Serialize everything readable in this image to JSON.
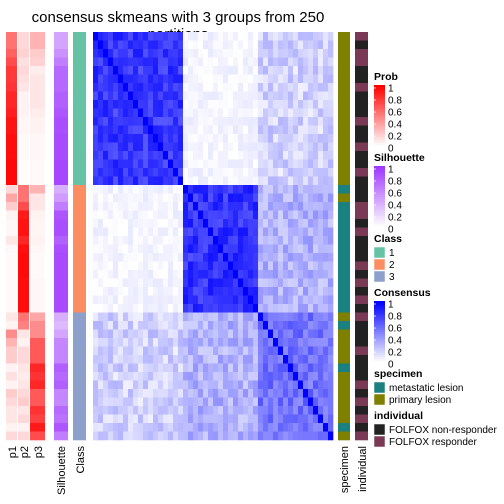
{
  "title": "consensus skmeans with 3 groups from 250 partitions",
  "chart_data": {
    "type": "heatmap",
    "title": "consensus skmeans with 3 groups from 250 partitions",
    "n_samples": 48,
    "annotation_columns": [
      "p1",
      "p2",
      "p3",
      "Silhouette",
      "Class"
    ],
    "side_annotation_columns": [
      "specimen",
      "individual"
    ],
    "class_sizes": [
      18,
      15,
      15
    ],
    "rows": [
      {
        "class": 1,
        "p1": 0.55,
        "p2": 0.15,
        "p3": 0.3,
        "silhouette": 0.45,
        "specimen": "primary lesion",
        "individual": "FOLFOX responder"
      },
      {
        "class": 1,
        "p1": 0.55,
        "p2": 0.15,
        "p3": 0.3,
        "silhouette": 0.45,
        "specimen": "primary lesion",
        "individual": "FOLFOX non-responder"
      },
      {
        "class": 1,
        "p1": 0.62,
        "p2": 0.18,
        "p3": 0.2,
        "silhouette": 0.55,
        "specimen": "primary lesion",
        "individual": "FOLFOX responder"
      },
      {
        "class": 1,
        "p1": 0.7,
        "p2": 0.12,
        "p3": 0.18,
        "silhouette": 0.65,
        "specimen": "primary lesion",
        "individual": "FOLFOX responder"
      },
      {
        "class": 1,
        "p1": 0.78,
        "p2": 0.15,
        "p3": 0.07,
        "silhouette": 0.75,
        "specimen": "primary lesion",
        "individual": "FOLFOX non-responder"
      },
      {
        "class": 1,
        "p1": 0.78,
        "p2": 0.12,
        "p3": 0.1,
        "silhouette": 0.75,
        "specimen": "primary lesion",
        "individual": "FOLFOX non-responder"
      },
      {
        "class": 1,
        "p1": 0.8,
        "p2": 0.1,
        "p3": 0.1,
        "silhouette": 0.75,
        "specimen": "primary lesion",
        "individual": "FOLFOX responder"
      },
      {
        "class": 1,
        "p1": 0.85,
        "p2": 0.05,
        "p3": 0.1,
        "silhouette": 0.8,
        "specimen": "primary lesion",
        "individual": "FOLFOX non-responder"
      },
      {
        "class": 1,
        "p1": 0.85,
        "p2": 0.05,
        "p3": 0.1,
        "silhouette": 0.8,
        "specimen": "primary lesion",
        "individual": "FOLFOX non-responder"
      },
      {
        "class": 1,
        "p1": 0.88,
        "p2": 0.05,
        "p3": 0.07,
        "silhouette": 0.85,
        "specimen": "primary lesion",
        "individual": "FOLFOX non-responder"
      },
      {
        "class": 1,
        "p1": 0.92,
        "p2": 0.03,
        "p3": 0.05,
        "silhouette": 0.88,
        "specimen": "primary lesion",
        "individual": "FOLFOX responder"
      },
      {
        "class": 1,
        "p1": 0.92,
        "p2": 0.03,
        "p3": 0.05,
        "silhouette": 0.88,
        "specimen": "primary lesion",
        "individual": "FOLFOX non-responder"
      },
      {
        "class": 1,
        "p1": 0.95,
        "p2": 0.02,
        "p3": 0.03,
        "silhouette": 0.9,
        "specimen": "primary lesion",
        "individual": "FOLFOX non-responder"
      },
      {
        "class": 1,
        "p1": 0.95,
        "p2": 0.02,
        "p3": 0.03,
        "silhouette": 0.9,
        "specimen": "primary lesion",
        "individual": "FOLFOX responder"
      },
      {
        "class": 1,
        "p1": 0.95,
        "p2": 0.02,
        "p3": 0.03,
        "silhouette": 0.9,
        "specimen": "primary lesion",
        "individual": "FOLFOX non-responder"
      },
      {
        "class": 1,
        "p1": 0.97,
        "p2": 0.01,
        "p3": 0.02,
        "silhouette": 0.92,
        "specimen": "primary lesion",
        "individual": "FOLFOX non-responder"
      },
      {
        "class": 1,
        "p1": 0.97,
        "p2": 0.01,
        "p3": 0.02,
        "silhouette": 0.92,
        "specimen": "primary lesion",
        "individual": "FOLFOX responder"
      },
      {
        "class": 1,
        "p1": 0.97,
        "p2": 0.01,
        "p3": 0.02,
        "silhouette": 0.92,
        "specimen": "primary lesion",
        "individual": "FOLFOX non-responder"
      },
      {
        "class": 2,
        "p1": 0.15,
        "p2": 0.55,
        "p3": 0.3,
        "silhouette": 0.4,
        "specimen": "metastatic lesion",
        "individual": "FOLFOX non-responder"
      },
      {
        "class": 2,
        "p1": 0.35,
        "p2": 0.55,
        "p3": 0.1,
        "silhouette": 0.5,
        "specimen": "primary lesion",
        "individual": "FOLFOX non-responder"
      },
      {
        "class": 2,
        "p1": 0.2,
        "p2": 0.7,
        "p3": 0.1,
        "silhouette": 0.65,
        "specimen": "metastatic lesion",
        "individual": "FOLFOX responder"
      },
      {
        "class": 2,
        "p1": 0.05,
        "p2": 0.9,
        "p3": 0.05,
        "silhouette": 0.85,
        "specimen": "metastatic lesion",
        "individual": "FOLFOX responder"
      },
      {
        "class": 2,
        "p1": 0.03,
        "p2": 0.93,
        "p3": 0.04,
        "silhouette": 0.88,
        "specimen": "metastatic lesion",
        "individual": "FOLFOX non-responder"
      },
      {
        "class": 2,
        "p1": 0.03,
        "p2": 0.93,
        "p3": 0.04,
        "silhouette": 0.88,
        "specimen": "metastatic lesion",
        "individual": "FOLFOX responder"
      },
      {
        "class": 2,
        "p1": 0.1,
        "p2": 0.85,
        "p3": 0.05,
        "silhouette": 0.8,
        "specimen": "metastatic lesion",
        "individual": "FOLFOX non-responder"
      },
      {
        "class": 2,
        "p1": 0.03,
        "p2": 0.94,
        "p3": 0.03,
        "silhouette": 0.88,
        "specimen": "metastatic lesion",
        "individual": "FOLFOX non-responder"
      },
      {
        "class": 2,
        "p1": 0.02,
        "p2": 0.96,
        "p3": 0.02,
        "silhouette": 0.9,
        "specimen": "metastatic lesion",
        "individual": "FOLFOX non-responder"
      },
      {
        "class": 2,
        "p1": 0.02,
        "p2": 0.96,
        "p3": 0.02,
        "silhouette": 0.9,
        "specimen": "metastatic lesion",
        "individual": "FOLFOX responder"
      },
      {
        "class": 2,
        "p1": 0.02,
        "p2": 0.96,
        "p3": 0.02,
        "silhouette": 0.9,
        "specimen": "metastatic lesion",
        "individual": "FOLFOX non-responder"
      },
      {
        "class": 2,
        "p1": 0.02,
        "p2": 0.95,
        "p3": 0.03,
        "silhouette": 0.9,
        "specimen": "metastatic lesion",
        "individual": "FOLFOX responder"
      },
      {
        "class": 2,
        "p1": 0.02,
        "p2": 0.95,
        "p3": 0.03,
        "silhouette": 0.9,
        "specimen": "metastatic lesion",
        "individual": "FOLFOX non-responder"
      },
      {
        "class": 2,
        "p1": 0.02,
        "p2": 0.95,
        "p3": 0.03,
        "silhouette": 0.9,
        "specimen": "metastatic lesion",
        "individual": "FOLFOX responder"
      },
      {
        "class": 2,
        "p1": 0.02,
        "p2": 0.95,
        "p3": 0.03,
        "silhouette": 0.9,
        "specimen": "metastatic lesion",
        "individual": "FOLFOX non-responder"
      },
      {
        "class": 3,
        "p1": 0.1,
        "p2": 0.55,
        "p3": 0.35,
        "silhouette": 0.4,
        "specimen": "primary lesion",
        "individual": "FOLFOX responder"
      },
      {
        "class": 3,
        "p1": 0.05,
        "p2": 0.5,
        "p3": 0.45,
        "silhouette": 0.35,
        "specimen": "metastatic lesion",
        "individual": "FOLFOX non-responder"
      },
      {
        "class": 3,
        "p1": 0.45,
        "p2": 0.1,
        "p3": 0.45,
        "silhouette": 0.45,
        "specimen": "primary lesion",
        "individual": "FOLFOX non-responder"
      },
      {
        "class": 3,
        "p1": 0.3,
        "p2": 0.05,
        "p3": 0.65,
        "silhouette": 0.6,
        "specimen": "primary lesion",
        "individual": "FOLFOX non-responder"
      },
      {
        "class": 3,
        "p1": 0.2,
        "p2": 0.15,
        "p3": 0.65,
        "silhouette": 0.6,
        "specimen": "primary lesion",
        "individual": "FOLFOX responder"
      },
      {
        "class": 3,
        "p1": 0.2,
        "p2": 0.15,
        "p3": 0.65,
        "silhouette": 0.6,
        "specimen": "primary lesion",
        "individual": "FOLFOX non-responder"
      },
      {
        "class": 3,
        "p1": 0.05,
        "p2": 0.1,
        "p3": 0.85,
        "silhouette": 0.8,
        "specimen": "metastatic lesion",
        "individual": "FOLFOX non-responder"
      },
      {
        "class": 3,
        "p1": 0.12,
        "p2": 0.08,
        "p3": 0.8,
        "silhouette": 0.75,
        "specimen": "primary lesion",
        "individual": "FOLFOX non-responder"
      },
      {
        "class": 3,
        "p1": 0.05,
        "p2": 0.1,
        "p3": 0.85,
        "silhouette": 0.8,
        "specimen": "primary lesion",
        "individual": "FOLFOX responder"
      },
      {
        "class": 3,
        "p1": 0.2,
        "p2": 0.15,
        "p3": 0.65,
        "silhouette": 0.6,
        "specimen": "primary lesion",
        "individual": "FOLFOX non-responder"
      },
      {
        "class": 3,
        "p1": 0.15,
        "p2": 0.2,
        "p3": 0.65,
        "silhouette": 0.6,
        "specimen": "primary lesion",
        "individual": "FOLFOX responder"
      },
      {
        "class": 3,
        "p1": 0.1,
        "p2": 0.1,
        "p3": 0.8,
        "silhouette": 0.75,
        "specimen": "primary lesion",
        "individual": "FOLFOX non-responder"
      },
      {
        "class": 3,
        "p1": 0.1,
        "p2": 0.15,
        "p3": 0.75,
        "silhouette": 0.7,
        "specimen": "primary lesion",
        "individual": "FOLFOX responder"
      },
      {
        "class": 3,
        "p1": 0.05,
        "p2": 0.05,
        "p3": 0.9,
        "silhouette": 0.85,
        "specimen": "metastatic lesion",
        "individual": "FOLFOX non-responder"
      },
      {
        "class": 3,
        "p1": 0.15,
        "p2": 0.15,
        "p3": 0.7,
        "silhouette": 0.65,
        "specimen": "primary lesion",
        "individual": "FOLFOX responder"
      }
    ],
    "block_consensus": [
      [
        0.78,
        0.04,
        0.18
      ],
      [
        0.04,
        0.8,
        0.3
      ],
      [
        0.18,
        0.3,
        0.55
      ]
    ],
    "colors": {
      "prob_high": "#ff0000",
      "prob_low": "#ffffff",
      "silhouette_high": "#9e37ff",
      "silhouette_low": "#ffffff",
      "consensus_high": "#0000ff",
      "consensus_low": "#ffffff",
      "class_1": "#66c2a5",
      "class_2": "#fc8d62",
      "class_3": "#8da0cb",
      "metastatic lesion": "#1a8080",
      "primary lesion": "#808000",
      "FOLFOX non-responder": "#222222",
      "FOLFOX responder": "#7a3a56"
    },
    "legends": [
      {
        "title": "Prob",
        "type": "gradient",
        "color_key": "prob",
        "ticks": [
          "1",
          "0.8",
          "0.6",
          "0.4",
          "0.2",
          "0"
        ]
      },
      {
        "title": "Silhouette",
        "type": "gradient",
        "color_key": "silhouette",
        "ticks": [
          "1",
          "0.8",
          "0.6",
          "0.4",
          "0.2",
          "0"
        ]
      },
      {
        "title": "Class",
        "type": "discrete",
        "labels": [
          "1",
          "2",
          "3"
        ],
        "color_keys": [
          "class_1",
          "class_2",
          "class_3"
        ]
      },
      {
        "title": "Consensus",
        "type": "gradient",
        "color_key": "consensus",
        "ticks": [
          "1",
          "0.8",
          "0.6",
          "0.4",
          "0.2",
          "0"
        ]
      },
      {
        "title": "specimen",
        "type": "discrete",
        "labels": [
          "metastatic lesion",
          "primary lesion"
        ],
        "color_keys": [
          "metastatic lesion",
          "primary lesion"
        ]
      },
      {
        "title": "individual",
        "type": "discrete",
        "labels": [
          "FOLFOX non-responder",
          "FOLFOX responder"
        ],
        "color_keys": [
          "FOLFOX non-responder",
          "FOLFOX responder"
        ]
      }
    ]
  }
}
